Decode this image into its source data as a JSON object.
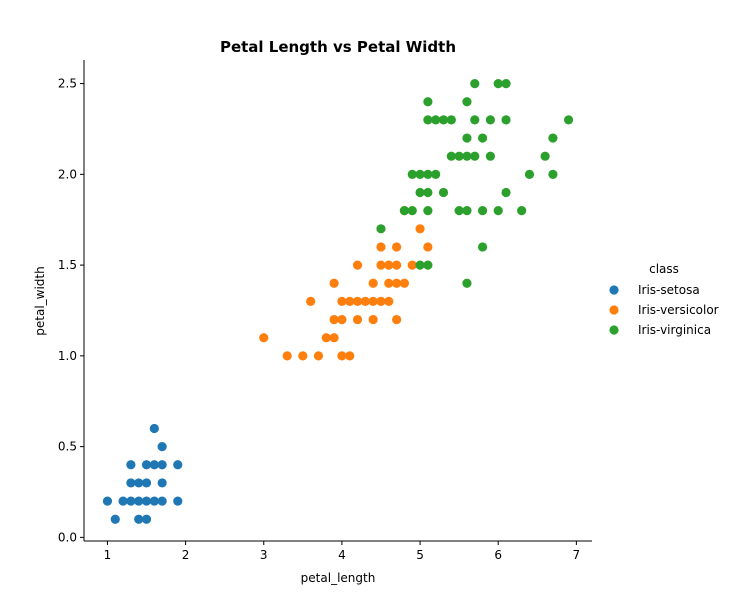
{
  "chart_data": {
    "type": "scatter",
    "title": "Petal Length vs Petal Width",
    "xlabel": "petal_length",
    "ylabel": "petal_width",
    "xlim": [
      0.7,
      7.2
    ],
    "ylim": [
      -0.02,
      2.63
    ],
    "xticks": [
      1,
      2,
      3,
      4,
      5,
      6,
      7
    ],
    "xtick_labels": [
      "1",
      "2",
      "3",
      "4",
      "5",
      "6",
      "7"
    ],
    "yticks": [
      0.0,
      0.5,
      1.0,
      1.5,
      2.0,
      2.5
    ],
    "ytick_labels": [
      "0.0",
      "0.5",
      "1.0",
      "1.5",
      "2.0",
      "2.5"
    ],
    "grid": false,
    "legend": {
      "title": "class",
      "placement": "right-outside"
    },
    "series": [
      {
        "name": "Iris-setosa",
        "color": "#1f77b4",
        "points": [
          [
            1.0,
            0.2
          ],
          [
            1.1,
            0.1
          ],
          [
            1.2,
            0.2
          ],
          [
            1.3,
            0.2
          ],
          [
            1.3,
            0.3
          ],
          [
            1.3,
            0.4
          ],
          [
            1.4,
            0.1
          ],
          [
            1.4,
            0.2
          ],
          [
            1.4,
            0.3
          ],
          [
            1.5,
            0.1
          ],
          [
            1.5,
            0.2
          ],
          [
            1.5,
            0.3
          ],
          [
            1.5,
            0.4
          ],
          [
            1.6,
            0.2
          ],
          [
            1.6,
            0.4
          ],
          [
            1.6,
            0.6
          ],
          [
            1.7,
            0.2
          ],
          [
            1.7,
            0.3
          ],
          [
            1.7,
            0.4
          ],
          [
            1.7,
            0.5
          ],
          [
            1.9,
            0.2
          ],
          [
            1.9,
            0.4
          ]
        ]
      },
      {
        "name": "Iris-versicolor",
        "color": "#ff7f0e",
        "points": [
          [
            3.0,
            1.1
          ],
          [
            3.3,
            1.0
          ],
          [
            3.5,
            1.0
          ],
          [
            3.6,
            1.3
          ],
          [
            3.7,
            1.0
          ],
          [
            3.8,
            1.1
          ],
          [
            3.9,
            1.1
          ],
          [
            3.9,
            1.2
          ],
          [
            3.9,
            1.4
          ],
          [
            4.0,
            1.0
          ],
          [
            4.0,
            1.2
          ],
          [
            4.0,
            1.3
          ],
          [
            4.1,
            1.0
          ],
          [
            4.1,
            1.3
          ],
          [
            4.2,
            1.2
          ],
          [
            4.2,
            1.3
          ],
          [
            4.2,
            1.5
          ],
          [
            4.3,
            1.3
          ],
          [
            4.4,
            1.2
          ],
          [
            4.4,
            1.3
          ],
          [
            4.4,
            1.4
          ],
          [
            4.5,
            1.3
          ],
          [
            4.5,
            1.5
          ],
          [
            4.5,
            1.6
          ],
          [
            4.6,
            1.3
          ],
          [
            4.6,
            1.4
          ],
          [
            4.6,
            1.5
          ],
          [
            4.7,
            1.2
          ],
          [
            4.7,
            1.4
          ],
          [
            4.7,
            1.5
          ],
          [
            4.7,
            1.6
          ],
          [
            4.8,
            1.4
          ],
          [
            4.8,
            1.8
          ],
          [
            4.9,
            1.5
          ],
          [
            5.0,
            1.7
          ],
          [
            5.1,
            1.6
          ]
        ]
      },
      {
        "name": "Iris-virginica",
        "color": "#2ca02c",
        "points": [
          [
            4.5,
            1.7
          ],
          [
            4.8,
            1.8
          ],
          [
            4.9,
            1.8
          ],
          [
            4.9,
            2.0
          ],
          [
            5.0,
            1.5
          ],
          [
            5.0,
            1.9
          ],
          [
            5.0,
            2.0
          ],
          [
            5.1,
            1.5
          ],
          [
            5.1,
            1.8
          ],
          [
            5.1,
            1.9
          ],
          [
            5.1,
            2.0
          ],
          [
            5.1,
            2.3
          ],
          [
            5.1,
            2.4
          ],
          [
            5.2,
            2.0
          ],
          [
            5.2,
            2.3
          ],
          [
            5.3,
            1.9
          ],
          [
            5.3,
            2.3
          ],
          [
            5.4,
            2.1
          ],
          [
            5.4,
            2.3
          ],
          [
            5.5,
            1.8
          ],
          [
            5.5,
            2.1
          ],
          [
            5.6,
            1.4
          ],
          [
            5.6,
            1.8
          ],
          [
            5.6,
            2.1
          ],
          [
            5.6,
            2.2
          ],
          [
            5.6,
            2.4
          ],
          [
            5.7,
            2.1
          ],
          [
            5.7,
            2.3
          ],
          [
            5.7,
            2.5
          ],
          [
            5.8,
            1.6
          ],
          [
            5.8,
            1.8
          ],
          [
            5.8,
            2.2
          ],
          [
            5.9,
            2.1
          ],
          [
            5.9,
            2.3
          ],
          [
            6.0,
            1.8
          ],
          [
            6.0,
            2.5
          ],
          [
            6.1,
            1.9
          ],
          [
            6.1,
            2.3
          ],
          [
            6.1,
            2.5
          ],
          [
            6.3,
            1.8
          ],
          [
            6.4,
            2.0
          ],
          [
            6.6,
            2.1
          ],
          [
            6.7,
            2.0
          ],
          [
            6.7,
            2.2
          ],
          [
            6.9,
            2.3
          ]
        ]
      }
    ]
  }
}
